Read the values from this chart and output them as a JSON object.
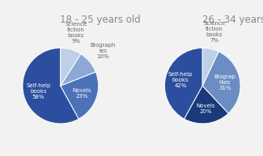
{
  "chart1_title": "18 - 25 years old",
  "chart1_values": [
    58,
    23,
    10,
    9
  ],
  "chart1_labels_inside": [
    "Self-help\nbooks\n58%",
    "Novels\n23%"
  ],
  "chart1_labels_outside": [
    "Biograph\nies\n10%",
    "Science\nfiction\nbooks\n9%"
  ],
  "chart1_colors": [
    "#2B4F9E",
    "#4C72B8",
    "#8DA8D5",
    "#BDD0E8"
  ],
  "chart1_startangle": 90,
  "chart2_title": "26 - 34 years old",
  "chart2_values": [
    42,
    20,
    31,
    7
  ],
  "chart2_labels_inside": [
    "Self-help\nbooks\n42%",
    "Novels\n20%",
    "Biograp\nhies\n31%"
  ],
  "chart2_labels_outside": [
    "Science\nfiction\nbooks\n7%"
  ],
  "chart2_colors": [
    "#2B4F9E",
    "#1A3A7A",
    "#6B8DC4",
    "#BDD0E8"
  ],
  "chart2_startangle": 90,
  "inside_label_fontsize": 5.0,
  "outside_label_fontsize": 5.0,
  "title_fontsize": 8.5,
  "title_color": "#888888",
  "background_color": "#F2F2F2",
  "label_color_inside": "white",
  "label_color_outside": "#666666"
}
